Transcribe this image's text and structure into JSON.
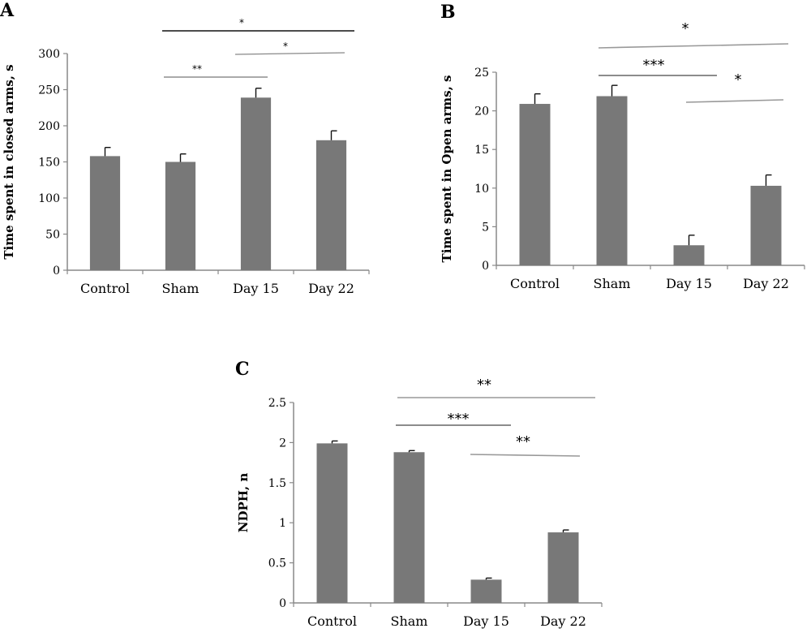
{
  "chart_data": [
    {
      "panel": "A",
      "type": "bar",
      "categories": [
        "Control",
        "Sham",
        "Day 15",
        "Day 22"
      ],
      "values": [
        158,
        150,
        239,
        180
      ],
      "errors": [
        12,
        11,
        13,
        13
      ],
      "ylabel": "Time spent in closed arms, s",
      "ylim": [
        0,
        300
      ],
      "yticks": [
        0,
        50,
        100,
        150,
        200,
        250,
        300
      ],
      "bar_color": "#787878",
      "significance": [
        {
          "from": 1,
          "to": 3,
          "label": "*"
        },
        {
          "from": 2,
          "to": 3,
          "label": "*"
        },
        {
          "from": 1,
          "to": 2,
          "label": "**"
        }
      ]
    },
    {
      "panel": "B",
      "type": "bar",
      "categories": [
        "Control",
        "Sham",
        "Day 15",
        "Day 22"
      ],
      "values": [
        20.9,
        21.9,
        2.6,
        10.3
      ],
      "errors": [
        1.3,
        1.4,
        1.3,
        1.4
      ],
      "ylabel": "Time spent in Open arms, s",
      "ylim": [
        0,
        25
      ],
      "yticks": [
        0,
        5,
        10,
        15,
        20,
        25
      ],
      "bar_color": "#787878",
      "significance": [
        {
          "from": 1,
          "to": 3,
          "label": "*"
        },
        {
          "from": 1,
          "to": 2,
          "label": "***"
        },
        {
          "from": 2,
          "to": 3,
          "label": "*"
        }
      ]
    },
    {
      "panel": "C",
      "type": "bar",
      "categories": [
        "Control",
        "Sham",
        "Day 15",
        "Day 22"
      ],
      "values": [
        1.99,
        1.88,
        0.29,
        0.88
      ],
      "errors": [
        0.03,
        0.02,
        0.02,
        0.03
      ],
      "ylabel": "NDPH, n",
      "ylim": [
        0,
        2.5
      ],
      "yticks": [
        "0",
        "0.5",
        "1",
        "1.5",
        "2",
        "2.5"
      ],
      "bar_color": "#787878",
      "significance": [
        {
          "from": 1,
          "to": 3,
          "label": "**"
        },
        {
          "from": 1,
          "to": 2,
          "label": "***"
        },
        {
          "from": 2,
          "to": 3,
          "label": "**"
        }
      ]
    }
  ]
}
